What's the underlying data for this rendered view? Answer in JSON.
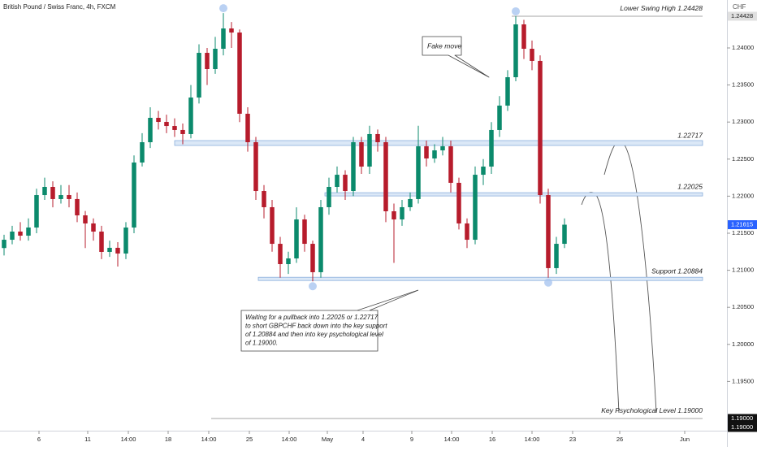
{
  "chart_data": {
    "type": "candlestick",
    "title": "British Pound / Swiss Franc, 4h, FXCM",
    "currency": "CHF",
    "up_color": "#0b8a6c",
    "down_color": "#b71c2c",
    "grid": false,
    "ylim": [
      1.18945,
      1.24647
    ],
    "yticks": [
      {
        "value": 1.24,
        "label": "1.24000"
      },
      {
        "value": 1.235,
        "label": "1.23500"
      },
      {
        "value": 1.23,
        "label": "1.23000"
      },
      {
        "value": 1.225,
        "label": "1.22500"
      },
      {
        "value": 1.22,
        "label": "1.22000"
      },
      {
        "value": 1.215,
        "label": "1.21500"
      },
      {
        "value": 1.21,
        "label": "1.21000"
      },
      {
        "value": 1.205,
        "label": "1.20500"
      },
      {
        "value": 1.2,
        "label": "1.20000"
      },
      {
        "value": 1.195,
        "label": "1.19500"
      }
    ],
    "xlim": [
      -0.5,
      89
    ],
    "xticks": [
      {
        "value": 4.3,
        "label": "6"
      },
      {
        "value": 10.3,
        "label": "11"
      },
      {
        "value": 15.3,
        "label": "14:00"
      },
      {
        "value": 20.2,
        "label": "18"
      },
      {
        "value": 25.2,
        "label": "14:00"
      },
      {
        "value": 30.2,
        "label": "25"
      },
      {
        "value": 35.1,
        "label": "14:00"
      },
      {
        "value": 39.8,
        "label": "May"
      },
      {
        "value": 44.2,
        "label": "4"
      },
      {
        "value": 50.2,
        "label": "9"
      },
      {
        "value": 55.1,
        "label": "14:00"
      },
      {
        "value": 60.1,
        "label": "16"
      },
      {
        "value": 65,
        "label": "14:00"
      },
      {
        "value": 70,
        "label": "23"
      },
      {
        "value": 75.8,
        "label": "26"
      },
      {
        "value": 83.8,
        "label": "Jun"
      }
    ],
    "candles": [
      [
        1.213,
        1.2148,
        1.212,
        1.21412
      ],
      [
        1.21412,
        1.216,
        1.2135,
        1.21522
      ],
      [
        1.21522,
        1.2165,
        1.214,
        1.21467
      ],
      [
        1.21467,
        1.217,
        1.214,
        1.21577
      ],
      [
        1.21577,
        1.221,
        1.215,
        1.22015
      ],
      [
        1.22015,
        1.2225,
        1.2195,
        1.22125
      ],
      [
        1.22125,
        1.222,
        1.2185,
        1.21961
      ],
      [
        1.21961,
        1.2215,
        1.219,
        1.22015
      ],
      [
        1.22015,
        1.2215,
        1.2185,
        1.21961
      ],
      [
        1.21961,
        1.2205,
        1.2165,
        1.21741
      ],
      [
        1.21741,
        1.218,
        1.213,
        1.21632
      ],
      [
        1.21632,
        1.217,
        1.214,
        1.21522
      ],
      [
        1.21522,
        1.216,
        1.2115,
        1.21248
      ],
      [
        1.21248,
        1.214,
        1.2118,
        1.21303
      ],
      [
        1.21303,
        1.2138,
        1.2105,
        1.21226
      ],
      [
        1.21226,
        1.2165,
        1.2115,
        1.21577
      ],
      [
        1.21577,
        1.2255,
        1.215,
        1.22454
      ],
      [
        1.22454,
        1.2285,
        1.224,
        1.22728
      ],
      [
        1.22728,
        1.232,
        1.2265,
        1.23057
      ],
      [
        1.23057,
        1.2315,
        1.229,
        1.23002
      ],
      [
        1.23002,
        1.231,
        1.2285,
        1.22947
      ],
      [
        1.22947,
        1.2305,
        1.228,
        1.22893
      ],
      [
        1.22893,
        1.2298,
        1.227,
        1.22838
      ],
      [
        1.22838,
        1.235,
        1.2278,
        1.23331
      ],
      [
        1.23331,
        1.2405,
        1.2325,
        1.23934
      ],
      [
        1.23934,
        1.24,
        1.235,
        1.23715
      ],
      [
        1.23715,
        1.2415,
        1.2365,
        1.23989
      ],
      [
        1.23989,
        1.2447,
        1.239,
        1.24263
      ],
      [
        1.24263,
        1.2435,
        1.24,
        1.24208
      ],
      [
        1.24208,
        1.2425,
        1.23,
        1.23112
      ],
      [
        1.23112,
        1.232,
        1.226,
        1.22728
      ],
      [
        1.22728,
        1.228,
        1.2195,
        1.2207
      ],
      [
        1.2207,
        1.2215,
        1.217,
        1.21851
      ],
      [
        1.21851,
        1.2195,
        1.2125,
        1.21357
      ],
      [
        1.21357,
        1.2145,
        1.209,
        1.21083
      ],
      [
        1.21083,
        1.2125,
        1.2095,
        1.2116
      ],
      [
        1.2116,
        1.2185,
        1.211,
        1.21686
      ],
      [
        1.21686,
        1.2175,
        1.2125,
        1.21357
      ],
      [
        1.21357,
        1.214,
        1.2085,
        1.20974
      ],
      [
        1.20974,
        1.2195,
        1.209,
        1.21851
      ],
      [
        1.21851,
        1.2225,
        1.2175,
        1.22125
      ],
      [
        1.22125,
        1.224,
        1.2205,
        1.22289
      ],
      [
        1.22289,
        1.2235,
        1.2195,
        1.2207
      ],
      [
        1.2207,
        1.228,
        1.22,
        1.22728
      ],
      [
        1.22728,
        1.228,
        1.223,
        1.22399
      ],
      [
        1.22399,
        1.2295,
        1.223,
        1.22838
      ],
      [
        1.22838,
        1.229,
        1.226,
        1.22728
      ],
      [
        1.22728,
        1.228,
        1.2165,
        1.21796
      ],
      [
        1.21796,
        1.219,
        1.211,
        1.21686
      ],
      [
        1.21686,
        1.2195,
        1.216,
        1.21851
      ],
      [
        1.21851,
        1.2205,
        1.218,
        1.21961
      ],
      [
        1.21961,
        1.2295,
        1.219,
        1.22673
      ],
      [
        1.22673,
        1.2275,
        1.224,
        1.22509
      ],
      [
        1.22509,
        1.227,
        1.2245,
        1.22618
      ],
      [
        1.22618,
        1.228,
        1.2255,
        1.22673
      ],
      [
        1.22673,
        1.2275,
        1.2205,
        1.2218
      ],
      [
        1.2218,
        1.2225,
        1.2155,
        1.21632
      ],
      [
        1.21632,
        1.217,
        1.213,
        1.21412
      ],
      [
        1.21412,
        1.224,
        1.2135,
        1.22289
      ],
      [
        1.22289,
        1.225,
        1.2215,
        1.22399
      ],
      [
        1.22399,
        1.23,
        1.223,
        1.22893
      ],
      [
        1.22893,
        1.2335,
        1.228,
        1.23222
      ],
      [
        1.23222,
        1.237,
        1.2315,
        1.23605
      ],
      [
        1.23605,
        1.24428,
        1.2355,
        1.24318
      ],
      [
        1.24318,
        1.2438,
        1.2385,
        1.23989
      ],
      [
        1.23989,
        1.241,
        1.237,
        1.23825
      ],
      [
        1.23825,
        1.239,
        1.219,
        1.22015
      ],
      [
        1.22015,
        1.221,
        1.209,
        1.21029
      ],
      [
        1.21029,
        1.2145,
        1.2095,
        1.21357
      ],
      [
        1.21357,
        1.217,
        1.213,
        1.21615
      ]
    ],
    "levels": [
      {
        "label": "Lower Swing High 1.24428",
        "value": 1.24428
      },
      {
        "label": "1.22717",
        "value": 1.22717
      },
      {
        "label": "1.22025",
        "value": 1.22025
      },
      {
        "label": "Support 1.20884",
        "value": 1.20884
      },
      {
        "label": "Key Psychological Level 1.19000",
        "value": 1.19
      }
    ],
    "price_labels": [
      {
        "value": 1.24428,
        "label": "1.24428"
      },
      {
        "value": 1.21615,
        "label": "1.21615"
      },
      {
        "value": 1.19,
        "label": "1.19000"
      },
      {
        "value": 1.19,
        "label": "1.19000"
      }
    ],
    "annotations": {
      "fake_move": "Fake move",
      "plan": [
        "Waiting for a pullback into 1.22025 or 1.22717",
        "to short GBPCHF back down into the key support",
        "of 1.20884 and then into key psychological level",
        "of 1.19000."
      ]
    }
  }
}
